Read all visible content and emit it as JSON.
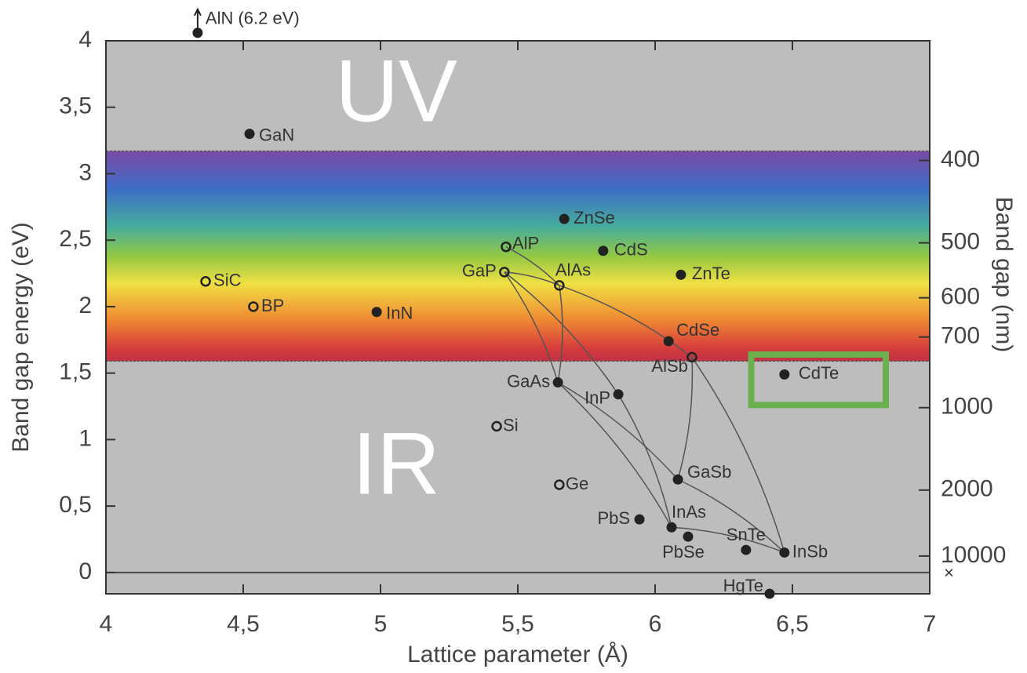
{
  "chart_data": {
    "type": "scatter",
    "x_label": "Lattice parameter (Å)",
    "y_label": "Band gap energy (eV)",
    "y2_label": "Band gap (nm)",
    "xlim": [
      4,
      7
    ],
    "xticks": [
      4,
      {
        "value": 4.5,
        "label": "4,5"
      },
      5,
      {
        "value": 5.5,
        "label": "5,5"
      },
      6,
      {
        "value": 6.5,
        "label": "6,5"
      },
      7
    ],
    "ylim": [
      -0.16,
      4
    ],
    "yticks": [
      0,
      {
        "value": 0.5,
        "label": "0,5"
      },
      1,
      {
        "value": 1.5,
        "label": "1,5"
      },
      2,
      {
        "value": 2.5,
        "label": "2,5"
      },
      3,
      {
        "value": 3.5,
        "label": "3,5"
      },
      4
    ],
    "y2lim": [
      310,
      10000
    ],
    "y2_scale": "reciprocal",
    "y2ticks": [
      400,
      500,
      600,
      700,
      1000,
      2000,
      10000
    ],
    "y2_infinity_mark": "×",
    "zero_line": true,
    "visible_band": [
      1.59,
      3.17
    ],
    "region_labels": [
      "UV",
      "IR"
    ],
    "marker_color": "#222222",
    "points": [
      {
        "label": "AlN (6.2 eV)",
        "x": 4.334,
        "y": 4.06,
        "marker": "arrow"
      },
      {
        "label": "GaN",
        "x": 4.523,
        "y": 3.3,
        "marker": "filled"
      },
      {
        "label": "SiC",
        "x": 4.363,
        "y": 2.19,
        "marker": "open"
      },
      {
        "label": "BP",
        "x": 4.537,
        "y": 2.0,
        "marker": "open"
      },
      {
        "label": "InN",
        "x": 4.986,
        "y": 1.96,
        "marker": "filled"
      },
      {
        "label": "AlP",
        "x": 5.457,
        "y": 2.45,
        "marker": "open"
      },
      {
        "label": "GaP",
        "x": 5.451,
        "y": 2.26,
        "marker": "open"
      },
      {
        "label": "ZnSe",
        "x": 5.669,
        "y": 2.66,
        "marker": "filled"
      },
      {
        "label": "CdS",
        "x": 5.811,
        "y": 2.42,
        "marker": "filled"
      },
      {
        "label": "AlAs",
        "x": 5.651,
        "y": 2.16,
        "marker": "open"
      },
      {
        "label": "ZnTe",
        "x": 6.094,
        "y": 2.24,
        "marker": "filled"
      },
      {
        "label": "CdSe",
        "x": 6.049,
        "y": 1.74,
        "marker": "filled"
      },
      {
        "label": "AlSb",
        "x": 6.134,
        "y": 1.62,
        "marker": "open"
      },
      {
        "label": "CdTe",
        "x": 6.471,
        "y": 1.49,
        "marker": "filled"
      },
      {
        "label": "GaAs",
        "x": 5.646,
        "y": 1.43,
        "marker": "filled"
      },
      {
        "label": "InP",
        "x": 5.866,
        "y": 1.34,
        "marker": "filled"
      },
      {
        "label": "Si",
        "x": 5.423,
        "y": 1.1,
        "marker": "open"
      },
      {
        "label": "Ge",
        "x": 5.651,
        "y": 0.66,
        "marker": "open"
      },
      {
        "label": "GaSb",
        "x": 6.083,
        "y": 0.7,
        "marker": "filled"
      },
      {
        "label": "PbS",
        "x": 5.943,
        "y": 0.4,
        "marker": "filled"
      },
      {
        "label": "InAs",
        "x": 6.06,
        "y": 0.34,
        "marker": "filled"
      },
      {
        "label": "PbSe",
        "x": 6.12,
        "y": 0.27,
        "marker": "filled"
      },
      {
        "label": "SnTe",
        "x": 6.331,
        "y": 0.17,
        "marker": "filled"
      },
      {
        "label": "InSb",
        "x": 6.471,
        "y": 0.15,
        "marker": "filled"
      },
      {
        "label": "HgTe",
        "x": 6.417,
        "y": -0.16,
        "marker": "filled"
      }
    ],
    "tie_lines": [
      [
        "AlP",
        "AlAs"
      ],
      [
        "GaP",
        "GaAs"
      ],
      [
        "GaP",
        "AlAs"
      ],
      [
        "AlAs",
        "GaAs"
      ],
      [
        "AlAs",
        "AlSb"
      ],
      [
        "GaAs",
        "InAs"
      ],
      [
        "GaAs",
        "GaSb"
      ],
      [
        "InP",
        "InAs"
      ],
      [
        "GaP",
        "InP"
      ],
      [
        "AlSb",
        "GaSb"
      ],
      [
        "AlSb",
        "InSb"
      ],
      [
        "GaSb",
        "InSb"
      ],
      [
        "InAs",
        "InSb"
      ]
    ],
    "highlight": {
      "xlim": [
        6.35,
        6.84
      ],
      "ylim": [
        1.26,
        1.64
      ],
      "color": "#6ab04c"
    }
  }
}
